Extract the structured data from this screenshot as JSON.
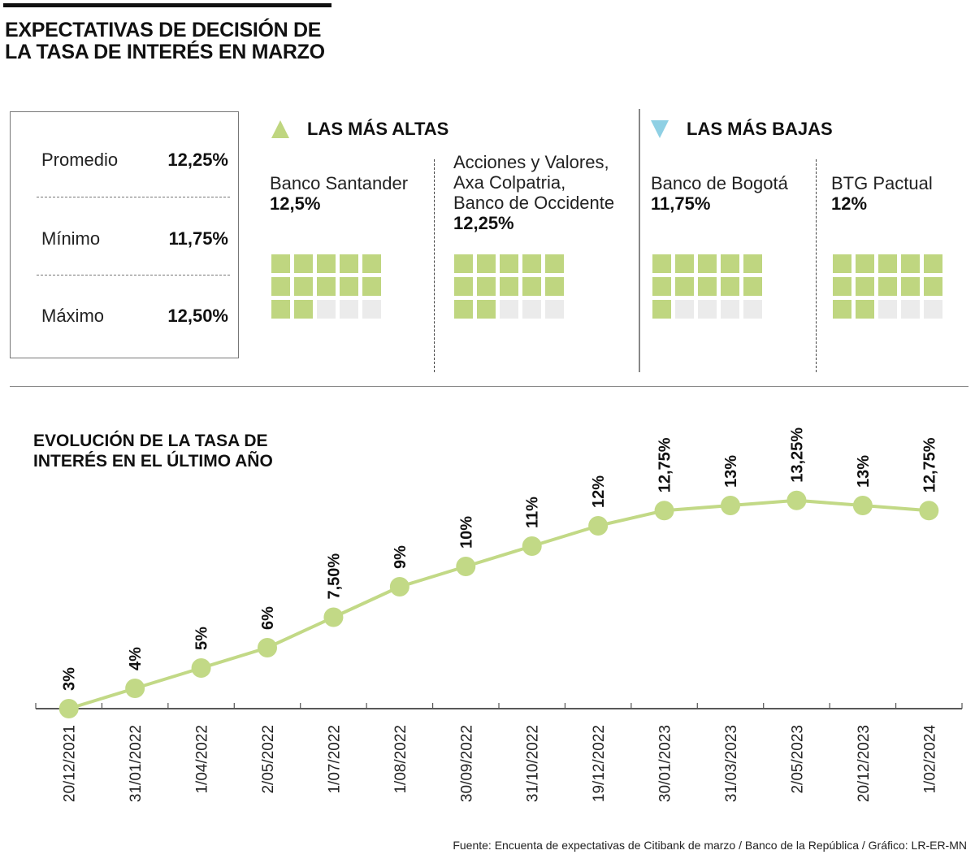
{
  "header": {
    "title_line1": "EXPECTATIVAS DE DECISIÓN DE",
    "title_line2": "LA TASA DE INTERÉS EN MARZO"
  },
  "summary": {
    "rows": [
      {
        "label": "Promedio",
        "value": "12,25%"
      },
      {
        "label": "Mínimo",
        "value": "11,75%"
      },
      {
        "label": "Máximo",
        "value": "12,50%"
      }
    ]
  },
  "highest": {
    "heading": "LAS MÁS ALTAS",
    "icon": "triangle-up-icon",
    "color": "#bfd680",
    "banks": [
      {
        "name": "Banco Santander",
        "rate": "12,5%",
        "waffle_filled": 12,
        "waffle_total": 15
      },
      {
        "name": "Acciones y Valores,\nAxa Colpatria,\nBanco de Occidente",
        "rate": "12,25%",
        "waffle_filled": 12,
        "waffle_total": 15
      }
    ]
  },
  "lowest": {
    "heading": "LAS MÁS BAJAS",
    "icon": "triangle-down-icon",
    "color": "#8fd0e4",
    "banks": [
      {
        "name": "Banco de Bogotá",
        "rate": "11,75%",
        "waffle_filled": 11,
        "waffle_total": 15
      },
      {
        "name": "BTG Pactual",
        "rate": "12%",
        "waffle_filled": 12,
        "waffle_total": 15
      }
    ]
  },
  "colors": {
    "accent_green": "#bfd680",
    "accent_blue": "#8fd0e4",
    "empty_cell": "#ebebeb",
    "line": "#c2d986"
  },
  "chart_title_line1": "EVOLUCIÓN DE LA TASA DE",
  "chart_title_line2": "INTERÉS EN EL ÚLTIMO AÑO",
  "chart_data": {
    "type": "line",
    "title": "EVOLUCIÓN DE LA TASA DE INTERÉS EN EL ÚLTIMO AÑO",
    "xlabel": "",
    "ylabel": "",
    "categories": [
      "20/12/2021",
      "31/01/2022",
      "1/04/2022",
      "2/05/2022",
      "1/07/2022",
      "1/08/2022",
      "30/09/2022",
      "31/10/2022",
      "19/12/2022",
      "30/01/2023",
      "31/03/2023",
      "2/05/2023",
      "20/12/2023",
      "1/02/2024"
    ],
    "series": [
      {
        "name": "Tasa de interés",
        "values": [
          3,
          4,
          5,
          6,
          7.5,
          9,
          10,
          11,
          12,
          12.75,
          13,
          13.25,
          13,
          12.75
        ],
        "labels": [
          "3%",
          "4%",
          "5%",
          "6%",
          "7,50%",
          "9%",
          "10%",
          "11%",
          "12%",
          "12,75%",
          "13%",
          "13,25%",
          "13%",
          "12,75%"
        ]
      }
    ],
    "ylim": [
      3,
      13.25
    ],
    "grid": false,
    "legend": "none"
  },
  "source": "Fuente: Encuenta de expectativas de Citibank de marzo / Banco de la República / Gráfico: LR-ER-MN"
}
